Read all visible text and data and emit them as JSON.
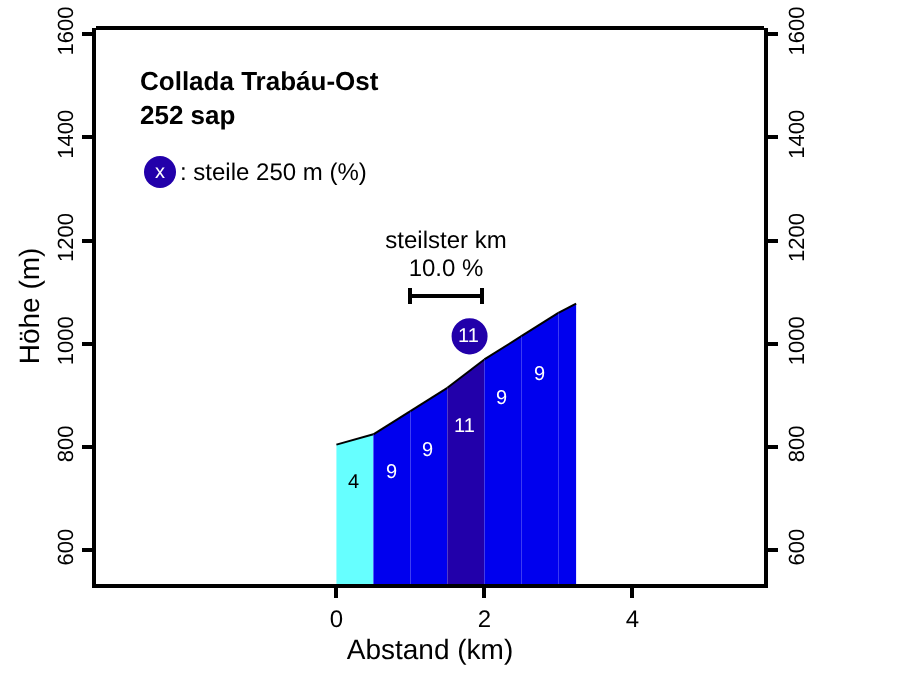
{
  "chart_data": {
    "type": "area",
    "title": "Collada Trabáu-Ost",
    "subtitle": "252 sap",
    "xlabel": "Abstand (km)",
    "ylabel": "Höhe (m)",
    "xlim": [
      -3.25,
      5.78
    ],
    "xticks": [
      0,
      2,
      4
    ],
    "ylim": [
      535,
      1612
    ],
    "yticks": [
      600,
      800,
      1000,
      1200,
      1400,
      1600
    ],
    "y2lim": [
      535,
      1612
    ],
    "y2ticks": [
      600,
      800,
      1000,
      1200,
      1400,
      1600
    ],
    "series": [
      {
        "x": [
          0,
          0.5
        ],
        "values": [
          805,
          825
        ],
        "color": "#66ffff"
      },
      {
        "x": [
          0.5,
          1.0
        ],
        "values": [
          825,
          870
        ],
        "color": "#0000ee"
      },
      {
        "x": [
          1.0,
          1.5
        ],
        "values": [
          870,
          915
        ],
        "color": "#0000ee"
      },
      {
        "x": [
          1.5,
          2.0
        ],
        "values": [
          915,
          970
        ],
        "color": "#2200aa"
      },
      {
        "x": [
          2.0,
          2.5
        ],
        "values": [
          970,
          1015
        ],
        "color": "#0000ee"
      },
      {
        "x": [
          2.5,
          3.0
        ],
        "values": [
          1015,
          1060
        ],
        "color": "#0000ee"
      },
      {
        "x": [
          3.0,
          3.24
        ],
        "values": [
          1060,
          1078
        ],
        "color": "#0000ee"
      }
    ],
    "annotations": [
      "x",
      ": steile 250 m (%)",
      "steilster km\n10.0 %",
      "4",
      "9",
      "9",
      "11",
      "9",
      "9",
      {
        "text": "11",
        "x": 1.8,
        "y": 1015
      }
    ],
    "grid": false
  }
}
